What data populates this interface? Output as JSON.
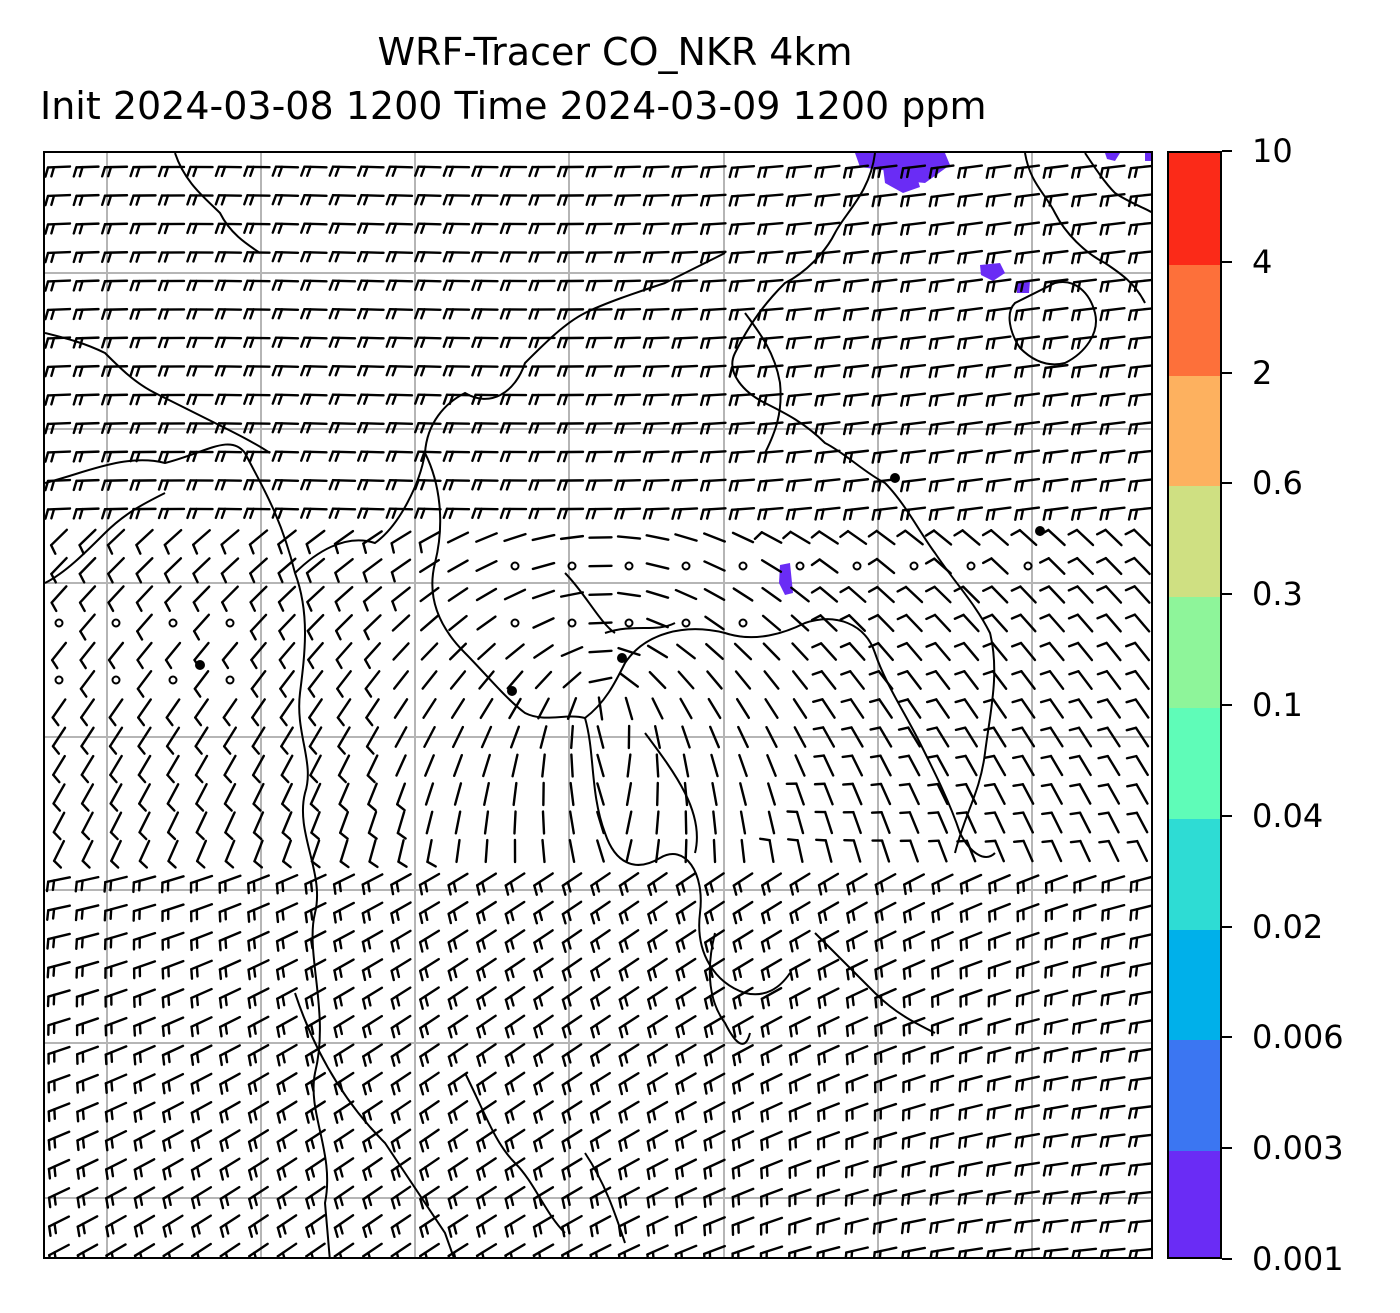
{
  "title": {
    "line1": "WRF-Tracer CO_NKR 4km",
    "line2": "Init 2024-03-08 1200 Time 2024-03-09 1200 ppm"
  },
  "colorbar": {
    "levels": [
      "0.001",
      "0.003",
      "0.006",
      "0.02",
      "0.04",
      "0.1",
      "0.3",
      "0.6",
      "2",
      "4",
      "10"
    ],
    "colors": [
      "#6a2cf5",
      "#3b76f2",
      "#00b0ea",
      "#2edcd4",
      "#5ffcb8",
      "#8ef59a",
      "#cfe082",
      "#fdb15f",
      "#fd703a",
      "#fb2a18"
    ]
  },
  "map": {
    "tracer_color": "#6a2cf5",
    "grid_color": "#b5b5b5",
    "coastline_color": "#000000",
    "barb_color": "#000000"
  }
}
